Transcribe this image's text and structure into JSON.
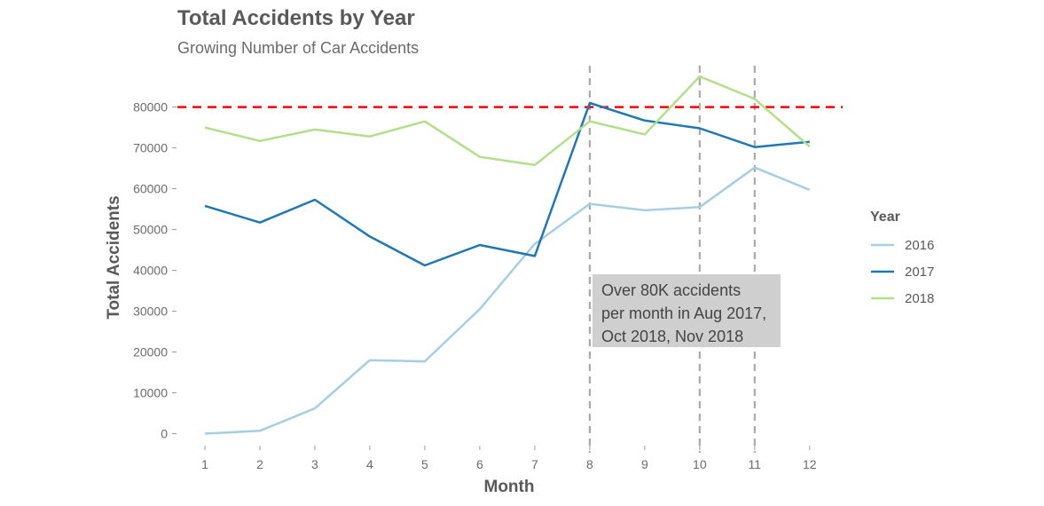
{
  "chart_data": {
    "type": "line",
    "title": "Total Accidents by Year",
    "subtitle": "Growing Number of Car Accidents",
    "xlabel": "Month",
    "ylabel": "Total Accidents",
    "x": [
      1,
      2,
      3,
      4,
      5,
      6,
      7,
      8,
      9,
      10,
      11,
      12
    ],
    "x_ticks": [
      "1",
      "2",
      "3",
      "4",
      "5",
      "6",
      "7",
      "8",
      "9",
      "10",
      "11",
      "12"
    ],
    "xlim": [
      0.5,
      12.6
    ],
    "ylim": [
      -2500,
      91000
    ],
    "y_ticks": [
      "0",
      "10000",
      "20000",
      "30000",
      "40000",
      "50000",
      "60000",
      "70000",
      "80000"
    ],
    "y_tick_values": [
      0,
      10000,
      20000,
      30000,
      40000,
      50000,
      60000,
      70000,
      80000
    ],
    "grid": false,
    "legend_title": "Year",
    "legend_position": "right",
    "series": [
      {
        "name": "2016",
        "color": "#a6cee3",
        "values": [
          0,
          700,
          6200,
          18000,
          17700,
          30500,
          46500,
          56300,
          54700,
          55500,
          65200,
          59700
        ]
      },
      {
        "name": "2017",
        "color": "#1f78b4",
        "values": [
          55800,
          51700,
          57300,
          48300,
          41200,
          46200,
          43500,
          81000,
          76700,
          74800,
          70200,
          71500
        ]
      },
      {
        "name": "2018",
        "color": "#b2df8a",
        "values": [
          75000,
          71700,
          74500,
          72800,
          76500,
          67800,
          65800,
          76500,
          73300,
          87500,
          82000,
          70300
        ]
      }
    ],
    "reference_lines": {
      "horizontal": {
        "value": 80000,
        "color": "#ff0000",
        "style": "dashed"
      },
      "vertical": [
        {
          "value": 8,
          "color": "#aaaaaa",
          "style": "dashed"
        },
        {
          "value": 10,
          "color": "#aaaaaa",
          "style": "dashed"
        },
        {
          "value": 11,
          "color": "#aaaaaa",
          "style": "dashed"
        }
      ]
    },
    "annotation": {
      "lines": [
        "Over 80K accidents",
        "per month in Aug 2017,",
        "Oct 2018, Nov 2018"
      ]
    }
  }
}
